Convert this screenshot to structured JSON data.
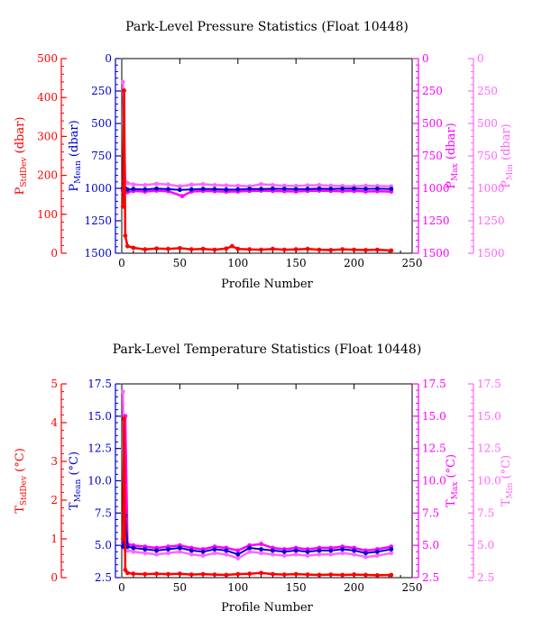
{
  "colors": {
    "stddev": "#ff0000",
    "mean": "#0000cc",
    "max": "#ff00ff",
    "min": "#ff66ff",
    "axis": "#000000"
  },
  "chart_data": [
    {
      "id": "pressure",
      "type": "scatter",
      "title": "Park-Level Pressure Statistics (Float 10448)",
      "xlabel": "Profile Number",
      "xlim": [
        0,
        250
      ],
      "xticks": [
        "0",
        "50",
        "100",
        "150",
        "200",
        "250"
      ],
      "axes": [
        {
          "key": "stddev",
          "label_main": "P",
          "label_sub": "StdDev",
          "label_tail": " (dbar)",
          "lim": [
            0,
            500
          ],
          "inverted": false,
          "ticks": [
            "0",
            "100",
            "200",
            "300",
            "400",
            "500"
          ]
        },
        {
          "key": "mean",
          "label_main": "P",
          "label_sub": "Mean",
          "label_tail": " (dbar)",
          "lim": [
            0,
            1500
          ],
          "inverted": true,
          "ticks": [
            "0",
            "250",
            "500",
            "750",
            "1000",
            "1250",
            "1500"
          ]
        },
        {
          "key": "max",
          "label_main": "P",
          "label_sub": "Max",
          "label_tail": " (dbar)",
          "lim": [
            0,
            1500
          ],
          "inverted": true,
          "ticks": [
            "0",
            "250",
            "500",
            "750",
            "1000",
            "1250",
            "1500"
          ]
        },
        {
          "key": "min",
          "label_main": "P",
          "label_sub": "Min",
          "label_tail": " (dbar)",
          "lim": [
            0,
            1500
          ],
          "inverted": true,
          "ticks": [
            "0",
            "250",
            "500",
            "750",
            "1000",
            "1250",
            "1500"
          ]
        }
      ],
      "series": [
        {
          "key": "stddev",
          "x": [
            1,
            2,
            3,
            5,
            10,
            20,
            30,
            40,
            50,
            60,
            70,
            80,
            90,
            95,
            100,
            110,
            120,
            130,
            140,
            150,
            160,
            170,
            180,
            190,
            200,
            210,
            220,
            232
          ],
          "y": [
            120,
            418,
            45,
            18,
            14,
            10,
            12,
            11,
            13,
            10,
            11,
            9,
            12,
            18,
            11,
            10,
            9,
            11,
            9,
            10,
            11,
            9,
            8,
            10,
            9,
            8,
            9,
            7
          ]
        },
        {
          "key": "mean",
          "x": [
            1,
            3,
            5,
            10,
            20,
            30,
            40,
            50,
            60,
            70,
            80,
            90,
            100,
            110,
            120,
            130,
            140,
            150,
            160,
            170,
            180,
            190,
            200,
            210,
            220,
            232
          ],
          "y": [
            1000,
            1000,
            1010,
            1005,
            1008,
            1002,
            1006,
            1012,
            1008,
            1004,
            1006,
            1010,
            1008,
            1004,
            1005,
            1003,
            1004,
            1006,
            1005,
            1002,
            1004,
            1003,
            1002,
            1004,
            1003,
            1005
          ]
        },
        {
          "key": "max",
          "x": [
            1,
            3,
            5,
            10,
            20,
            30,
            40,
            52,
            60,
            70,
            80,
            90,
            100,
            110,
            120,
            130,
            140,
            150,
            160,
            170,
            180,
            190,
            200,
            210,
            220,
            232
          ],
          "y": [
            1020,
            1020,
            1030,
            1020,
            1025,
            1018,
            1022,
            1060,
            1025,
            1020,
            1022,
            1026,
            1024,
            1020,
            1018,
            1020,
            1022,
            1024,
            1020,
            1018,
            1020,
            1022,
            1020,
            1024,
            1022,
            1025
          ]
        },
        {
          "key": "min",
          "x": [
            1,
            3,
            5,
            10,
            20,
            30,
            40,
            50,
            60,
            70,
            80,
            90,
            100,
            110,
            120,
            130,
            140,
            150,
            160,
            170,
            180,
            190,
            200,
            210,
            220,
            232
          ],
          "y": [
            180,
            950,
            960,
            970,
            975,
            965,
            970,
            985,
            972,
            968,
            975,
            978,
            980,
            985,
            968,
            975,
            980,
            982,
            978,
            975,
            980,
            982,
            985,
            980,
            982,
            985
          ]
        }
      ]
    },
    {
      "id": "temperature",
      "type": "scatter",
      "title": "Park-Level Temperature Statistics (Float 10448)",
      "xlabel": "Profile Number",
      "xlim": [
        0,
        250
      ],
      "xticks": [
        "0",
        "50",
        "100",
        "150",
        "200",
        "250"
      ],
      "axes": [
        {
          "key": "stddev",
          "label_main": "T",
          "label_sub": "StdDev",
          "label_tail": " (°C)",
          "lim": [
            0,
            5
          ],
          "inverted": false,
          "ticks": [
            "0",
            "1",
            "2",
            "3",
            "4",
            "5"
          ]
        },
        {
          "key": "mean",
          "label_main": "T",
          "label_sub": "Mean",
          "label_tail": " (°C)",
          "lim": [
            2.5,
            17.5
          ],
          "inverted": false,
          "ticks": [
            "2.5",
            "5.0",
            "7.5",
            "10.0",
            "12.5",
            "15.0",
            "17.5"
          ]
        },
        {
          "key": "max",
          "label_main": "T",
          "label_sub": "Max",
          "label_tail": " (°C)",
          "lim": [
            2.5,
            17.5
          ],
          "inverted": false,
          "ticks": [
            "2.5",
            "5.0",
            "7.5",
            "10.0",
            "12.5",
            "15.0",
            "17.5"
          ]
        },
        {
          "key": "min",
          "label_main": "T",
          "label_sub": "Min",
          "label_tail": " (°C)",
          "lim": [
            2.5,
            17.5
          ],
          "inverted": false,
          "ticks": [
            "2.5",
            "5.0",
            "7.5",
            "10.0",
            "12.5",
            "15.0",
            "17.5"
          ]
        }
      ],
      "series": [
        {
          "key": "stddev",
          "x": [
            1,
            2,
            3,
            5,
            10,
            20,
            30,
            40,
            50,
            60,
            70,
            80,
            90,
            100,
            110,
            120,
            130,
            140,
            150,
            160,
            170,
            180,
            190,
            200,
            210,
            220,
            232
          ],
          "y": [
            1.0,
            4.1,
            0.2,
            0.12,
            0.1,
            0.09,
            0.1,
            0.09,
            0.1,
            0.08,
            0.09,
            0.08,
            0.07,
            0.09,
            0.1,
            0.12,
            0.09,
            0.08,
            0.09,
            0.08,
            0.07,
            0.08,
            0.07,
            0.08,
            0.07,
            0.06,
            0.07
          ]
        },
        {
          "key": "mean",
          "x": [
            1,
            3,
            5,
            10,
            20,
            30,
            40,
            50,
            60,
            70,
            80,
            90,
            100,
            110,
            120,
            130,
            140,
            150,
            160,
            170,
            180,
            190,
            200,
            210,
            220,
            232
          ],
          "y": [
            4.9,
            7.3,
            4.9,
            4.8,
            4.7,
            4.6,
            4.7,
            4.8,
            4.6,
            4.5,
            4.7,
            4.6,
            4.3,
            4.8,
            4.7,
            4.6,
            4.5,
            4.6,
            4.5,
            4.6,
            4.6,
            4.7,
            4.6,
            4.4,
            4.5,
            4.7
          ]
        },
        {
          "key": "max",
          "x": [
            1,
            3,
            5,
            10,
            20,
            30,
            40,
            50,
            60,
            70,
            80,
            90,
            100,
            110,
            120,
            130,
            140,
            150,
            160,
            170,
            180,
            190,
            200,
            210,
            220,
            232
          ],
          "y": [
            5.2,
            15.0,
            5.1,
            5.0,
            4.9,
            4.8,
            4.9,
            5.0,
            4.8,
            4.7,
            4.9,
            4.8,
            4.6,
            5.0,
            5.1,
            4.8,
            4.7,
            4.8,
            4.7,
            4.8,
            4.8,
            4.9,
            4.8,
            4.6,
            4.7,
            4.9
          ]
        },
        {
          "key": "min",
          "x": [
            1,
            3,
            5,
            10,
            20,
            30,
            40,
            50,
            60,
            70,
            80,
            90,
            100,
            110,
            120,
            130,
            140,
            150,
            160,
            170,
            180,
            190,
            200,
            210,
            220,
            232
          ],
          "y": [
            16.9,
            4.7,
            4.6,
            4.5,
            4.4,
            4.3,
            4.4,
            4.5,
            4.3,
            4.2,
            4.4,
            4.3,
            4.0,
            4.5,
            4.4,
            4.3,
            4.2,
            4.3,
            4.2,
            4.3,
            4.3,
            4.4,
            4.3,
            4.1,
            4.2,
            4.4
          ]
        }
      ]
    }
  ]
}
